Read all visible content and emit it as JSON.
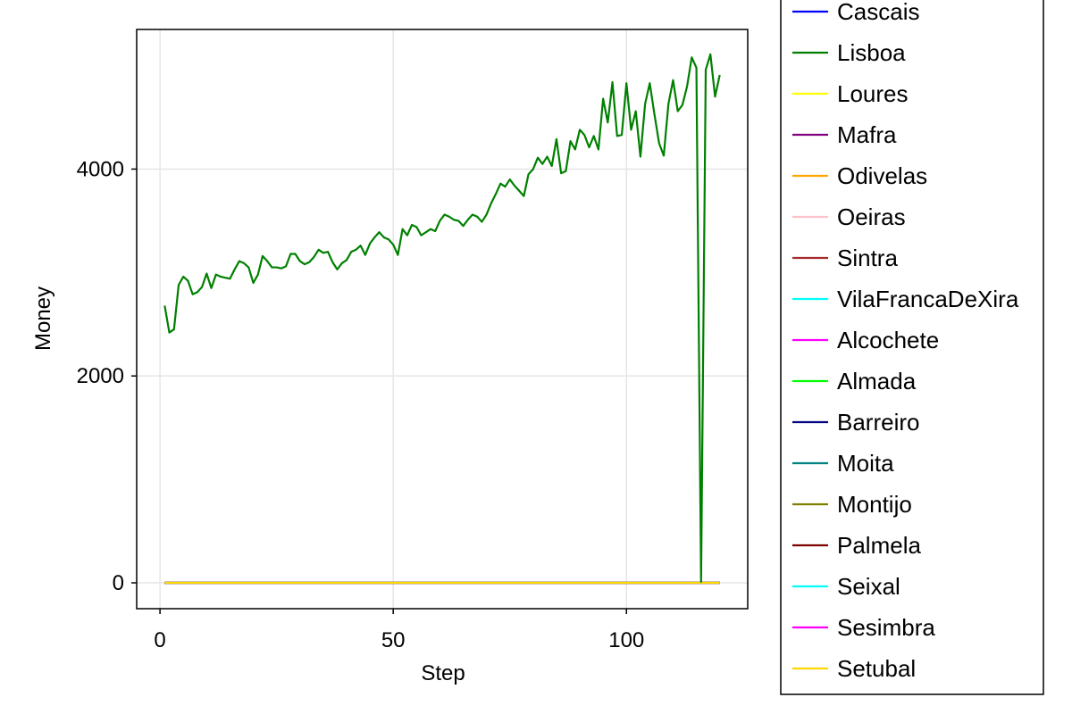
{
  "chart_data": {
    "type": "line",
    "xlabel": "Step",
    "ylabel": "Money",
    "xlim": [
      -5,
      126
    ],
    "ylim": [
      -250,
      5350
    ],
    "x_ticks": [
      0,
      50,
      100
    ],
    "y_ticks": [
      0,
      2000,
      4000
    ],
    "grid": true,
    "legend_position": "right",
    "x_range": [
      1,
      120
    ],
    "series": [
      {
        "name": "Cascais",
        "color": "#0000ff",
        "values": "zero"
      },
      {
        "name": "Lisboa",
        "color": "#008000",
        "values": [
          2680,
          2420,
          2450,
          2880,
          2960,
          2920,
          2790,
          2810,
          2860,
          2990,
          2850,
          2980,
          2960,
          2950,
          2940,
          3030,
          3110,
          3090,
          3050,
          2900,
          2980,
          3160,
          3110,
          3050,
          3050,
          3040,
          3060,
          3180,
          3180,
          3110,
          3080,
          3100,
          3150,
          3220,
          3190,
          3200,
          3100,
          3030,
          3090,
          3120,
          3200,
          3220,
          3260,
          3170,
          3280,
          3340,
          3390,
          3340,
          3320,
          3270,
          3170,
          3420,
          3360,
          3460,
          3440,
          3360,
          3390,
          3420,
          3400,
          3500,
          3560,
          3540,
          3510,
          3500,
          3450,
          3510,
          3560,
          3540,
          3490,
          3560,
          3670,
          3760,
          3860,
          3830,
          3900,
          3840,
          3790,
          3740,
          3950,
          4000,
          4110,
          4050,
          4120,
          4030,
          4290,
          3960,
          3980,
          4270,
          4190,
          4380,
          4330,
          4210,
          4320,
          4190,
          4680,
          4450,
          4840,
          4320,
          4330,
          4830,
          4380,
          4560,
          4120,
          4630,
          4830,
          4530,
          4250,
          4130,
          4630,
          4860,
          4560,
          4620,
          4800,
          5080,
          4980,
          10,
          4960,
          5110,
          4700,
          4910
        ]
      },
      {
        "name": "Loures",
        "color": "#ffff00",
        "values": "zero"
      },
      {
        "name": "Mafra",
        "color": "#800080",
        "values": "zero"
      },
      {
        "name": "Odivelas",
        "color": "#ffa500",
        "values": "zero"
      },
      {
        "name": "Oeiras",
        "color": "#ffc0cb",
        "values": "zero"
      },
      {
        "name": "Sintra",
        "color": "#a52a2a",
        "values": "zero"
      },
      {
        "name": "VilaFrancaDeXira",
        "color": "#00ffff",
        "values": "zero"
      },
      {
        "name": "Alcochete",
        "color": "#ff00ff",
        "values": "zero"
      },
      {
        "name": "Almada",
        "color": "#00ff00",
        "values": "zero"
      },
      {
        "name": "Barreiro",
        "color": "#000080",
        "values": "zero"
      },
      {
        "name": "Moita",
        "color": "#008080",
        "values": "zero"
      },
      {
        "name": "Montijo",
        "color": "#808000",
        "values": "zero"
      },
      {
        "name": "Palmela",
        "color": "#800000",
        "values": "zero"
      },
      {
        "name": "Seixal",
        "color": "#00ffff",
        "values": "zero"
      },
      {
        "name": "Sesimbra",
        "color": "#ff00ff",
        "values": "zero"
      },
      {
        "name": "Setubal",
        "color": "#ffd700",
        "values": "zero"
      }
    ]
  }
}
